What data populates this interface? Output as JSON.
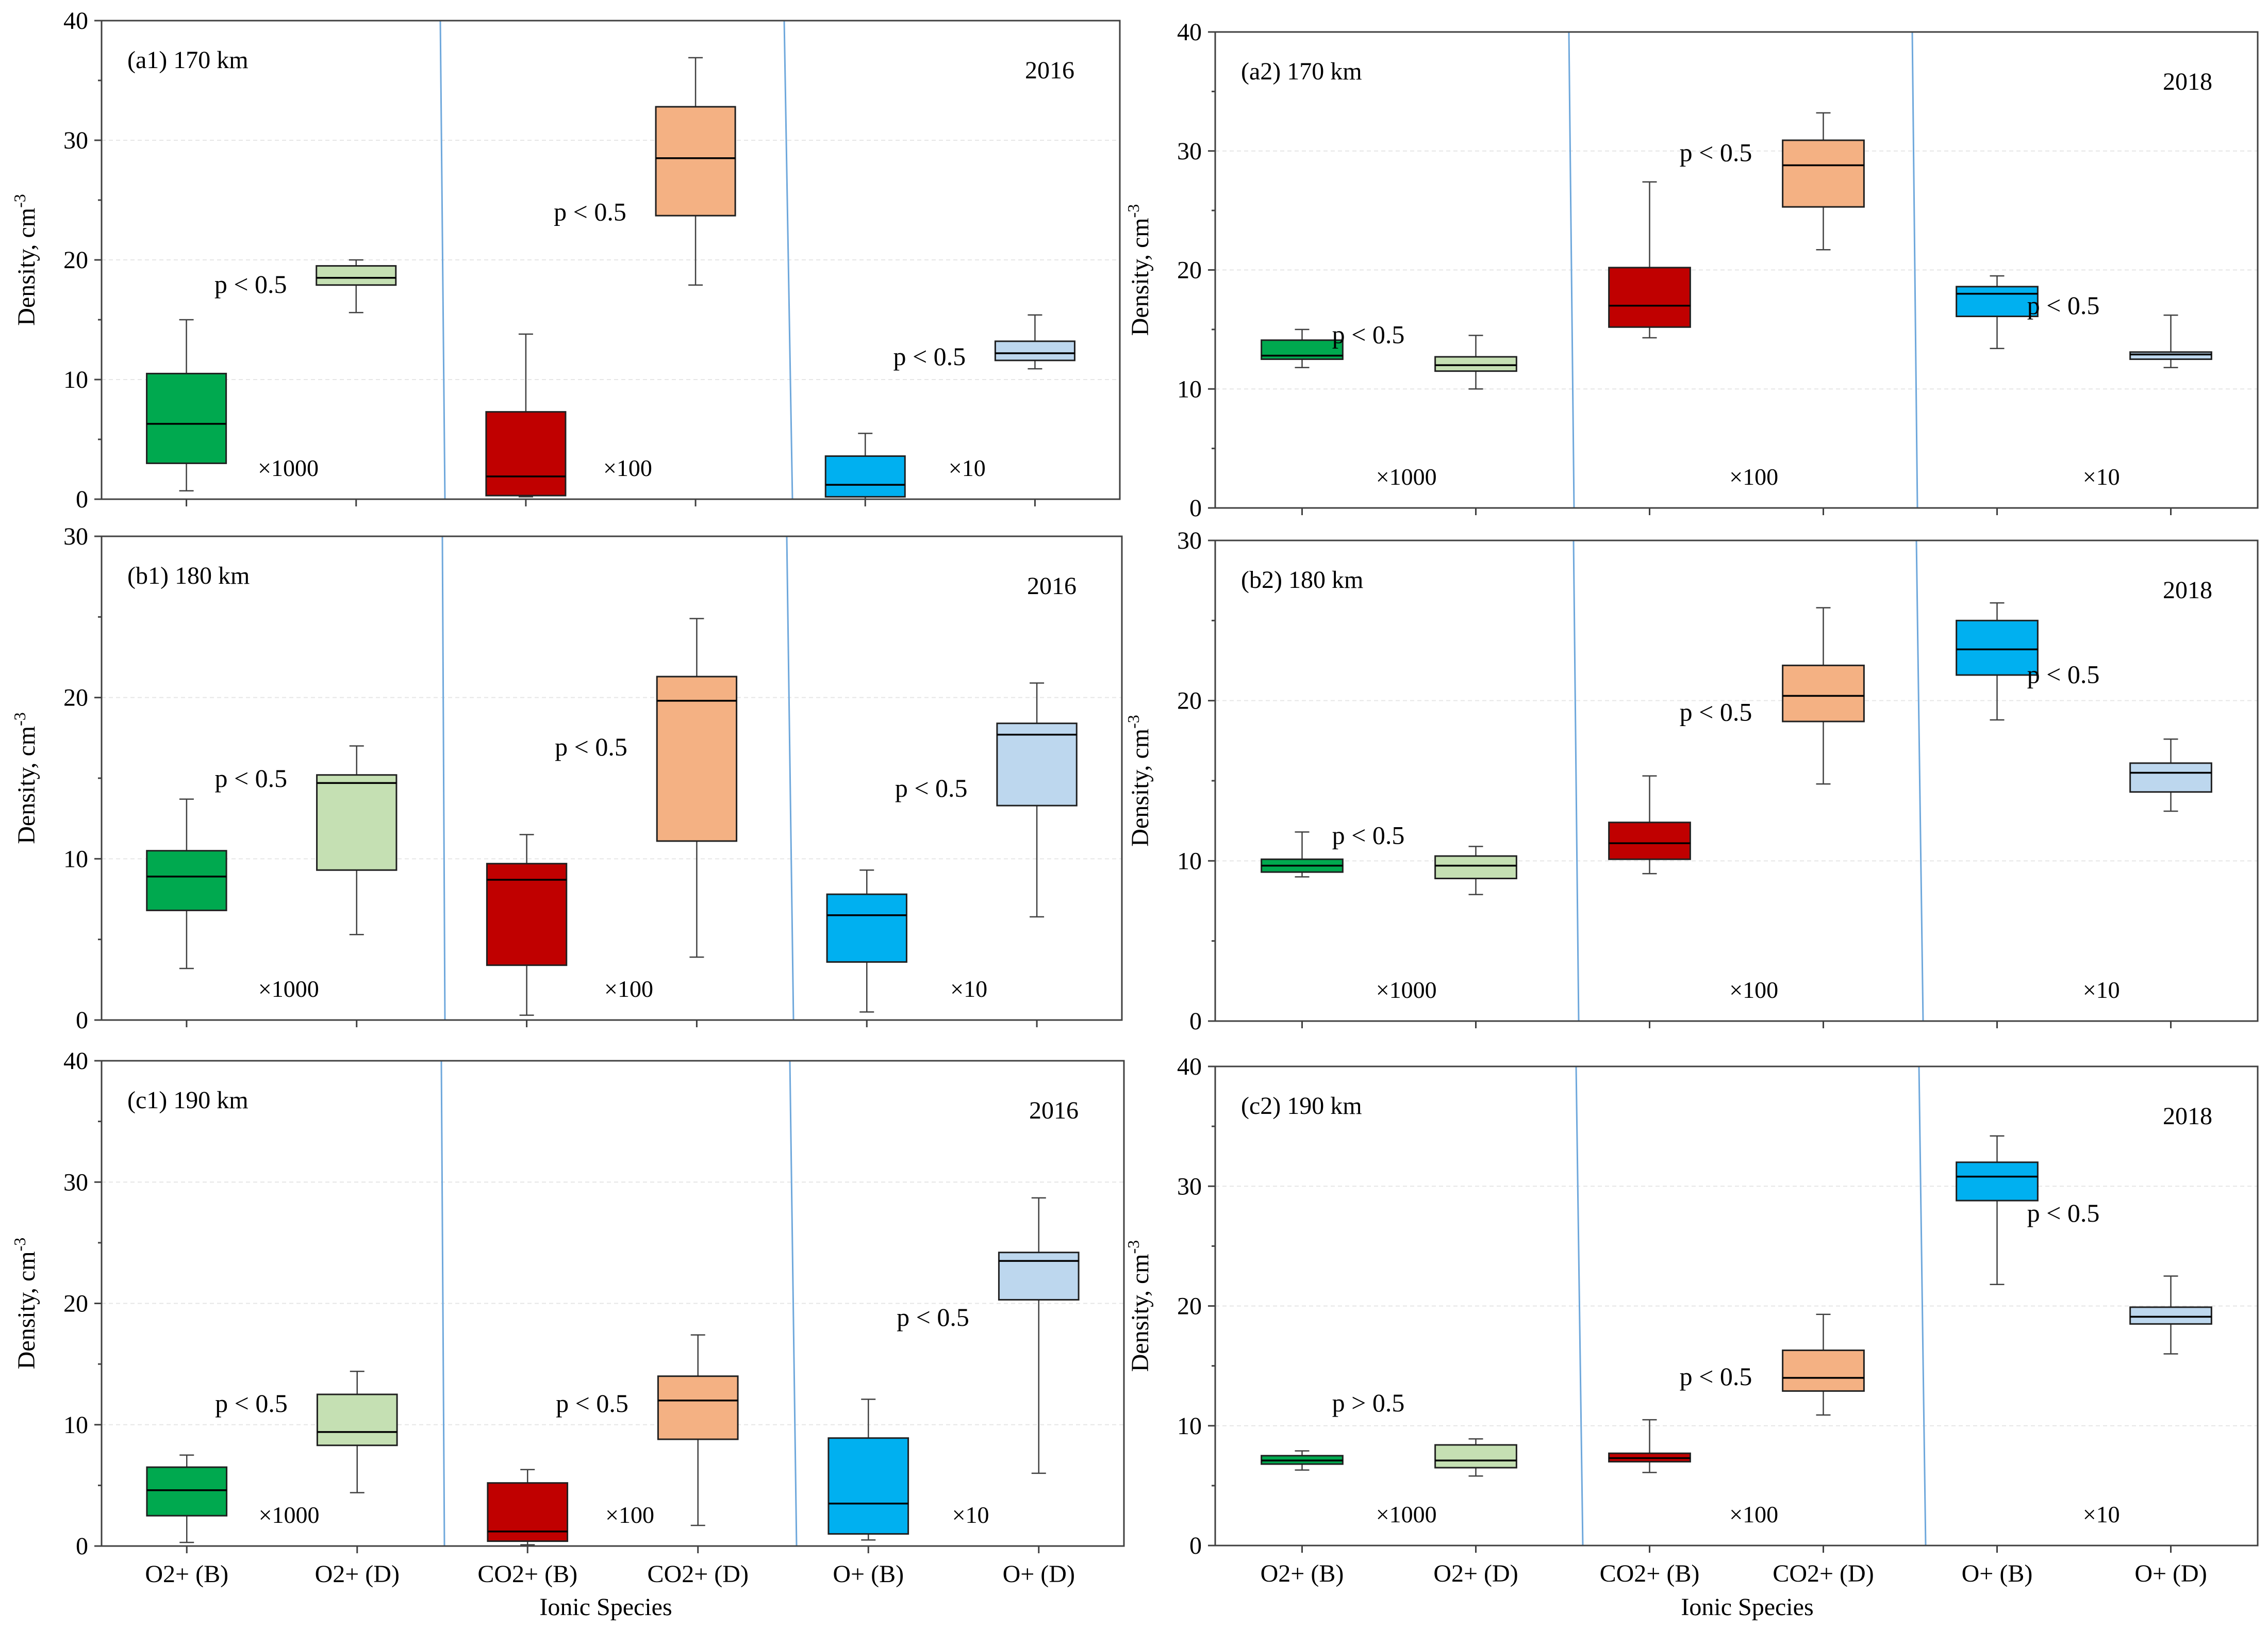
{
  "figure": {
    "x_axis_title": "Ionic Species",
    "y_axis_title": "Density, cm",
    "y_axis_exponent": "-3"
  },
  "colors": {
    "O2+ (B)": "#00a94f",
    "O2+ (D)": "#c5e0b3",
    "CO2+ (B)": "#c00000",
    "CO2+ (D)": "#f4b183",
    "O+ (B)": "#00b0f0",
    "O+ (D)": "#bdd7ee"
  },
  "chart_data": [
    {
      "id": "a1",
      "type": "box",
      "title": "(a1) 170 km",
      "year": "2016",
      "categories": [
        "O2+ (B)",
        "O2+ (D)",
        "CO2+ (B)",
        "CO2+ (D)",
        "O+ (B)",
        "O+ (D)"
      ],
      "ylim": [
        0,
        40
      ],
      "yticks": [
        0,
        10,
        20,
        30,
        40
      ],
      "boxes": [
        {
          "min": 0.7,
          "q1": 3.0,
          "median": 6.3,
          "q3": 10.5,
          "max": 15.0
        },
        {
          "min": 15.6,
          "q1": 17.9,
          "median": 18.5,
          "q3": 19.5,
          "max": 20.0
        },
        {
          "min": 0.2,
          "q1": 0.3,
          "median": 1.9,
          "q3": 7.3,
          "max": 13.8
        },
        {
          "min": 17.9,
          "q1": 23.7,
          "median": 28.5,
          "q3": 32.8,
          "max": 36.9
        },
        {
          "min": 0.0,
          "q1": 0.2,
          "median": 1.2,
          "q3": 3.6,
          "max": 5.5
        },
        {
          "min": 10.9,
          "q1": 11.6,
          "median": 12.2,
          "q3": 13.2,
          "max": 15.4
        }
      ],
      "p_values": [
        "p < 0.5",
        "p < 0.5",
        "p < 0.5"
      ],
      "multipliers": [
        "×1000",
        "×100",
        "×10"
      ]
    },
    {
      "id": "a2",
      "type": "box",
      "title": "(a2) 170 km",
      "year": "2018",
      "categories": [
        "O2+ (B)",
        "O2+ (D)",
        "CO2+ (B)",
        "CO2+ (D)",
        "O+ (B)",
        "O+ (D)"
      ],
      "ylim": [
        0,
        40
      ],
      "yticks": [
        0,
        10,
        20,
        30,
        40
      ],
      "boxes": [
        {
          "min": 11.8,
          "q1": 12.5,
          "median": 12.8,
          "q3": 14.1,
          "max": 15.0
        },
        {
          "min": 10.0,
          "q1": 11.5,
          "median": 12.0,
          "q3": 12.7,
          "max": 14.5
        },
        {
          "min": 14.3,
          "q1": 15.2,
          "median": 17.0,
          "q3": 20.2,
          "max": 27.4
        },
        {
          "min": 21.7,
          "q1": 25.3,
          "median": 28.8,
          "q3": 30.9,
          "max": 33.2
        },
        {
          "min": 13.4,
          "q1": 16.1,
          "median": 18.0,
          "q3": 18.6,
          "max": 19.5
        },
        {
          "min": 11.8,
          "q1": 12.5,
          "median": 12.9,
          "q3": 13.1,
          "max": 16.2
        }
      ],
      "p_values": [
        "p < 0.5",
        "p < 0.5",
        "p < 0.5"
      ],
      "multipliers": [
        "×1000",
        "×100",
        "×10"
      ]
    },
    {
      "id": "b1",
      "type": "box",
      "title": "(b1) 180 km",
      "year": "2016",
      "categories": [
        "O2+ (B)",
        "O2+ (D)",
        "CO2+ (B)",
        "CO2+ (D)",
        "O+ (B)",
        "O+ (D)"
      ],
      "ylim": [
        0,
        30
      ],
      "yticks": [
        0,
        10,
        20,
        30
      ],
      "boxes": [
        {
          "min": 3.2,
          "q1": 6.8,
          "median": 8.9,
          "q3": 10.5,
          "max": 13.7
        },
        {
          "min": 5.3,
          "q1": 9.3,
          "median": 14.7,
          "q3": 15.2,
          "max": 17.0
        },
        {
          "min": 0.3,
          "q1": 3.4,
          "median": 8.7,
          "q3": 9.7,
          "max": 11.5
        },
        {
          "min": 3.9,
          "q1": 11.1,
          "median": 19.8,
          "q3": 21.3,
          "max": 24.9
        },
        {
          "min": 0.5,
          "q1": 3.6,
          "median": 6.5,
          "q3": 7.8,
          "max": 9.3
        },
        {
          "min": 6.4,
          "q1": 13.3,
          "median": 17.7,
          "q3": 18.4,
          "max": 20.9
        }
      ],
      "p_values": [
        "p < 0.5",
        "p < 0.5",
        "p < 0.5"
      ],
      "multipliers": [
        "×1000",
        "×100",
        "×10"
      ]
    },
    {
      "id": "b2",
      "type": "box",
      "title": "(b2) 180 km",
      "year": "2018",
      "categories": [
        "O2+ (B)",
        "O2+ (D)",
        "CO2+ (B)",
        "CO2+ (D)",
        "O+ (B)",
        "O+ (D)"
      ],
      "ylim": [
        0,
        30
      ],
      "yticks": [
        0,
        10,
        20,
        30
      ],
      "boxes": [
        {
          "min": 9.0,
          "q1": 9.3,
          "median": 9.7,
          "q3": 10.1,
          "max": 11.8
        },
        {
          "min": 7.9,
          "q1": 8.9,
          "median": 9.7,
          "q3": 10.3,
          "max": 10.9
        },
        {
          "min": 9.2,
          "q1": 10.1,
          "median": 11.1,
          "q3": 12.4,
          "max": 15.3
        },
        {
          "min": 14.8,
          "q1": 18.7,
          "median": 20.3,
          "q3": 22.2,
          "max": 25.8
        },
        {
          "min": 18.8,
          "q1": 21.6,
          "median": 23.2,
          "q3": 25.0,
          "max": 26.1
        },
        {
          "min": 13.1,
          "q1": 14.3,
          "median": 15.5,
          "q3": 16.1,
          "max": 17.6
        }
      ],
      "p_values": [
        "p < 0.5",
        "p < 0.5",
        "p < 0.5"
      ],
      "multipliers": [
        "×1000",
        "×100",
        "×10"
      ]
    },
    {
      "id": "c1",
      "type": "box",
      "title": "(c1) 190 km",
      "year": "2016",
      "categories": [
        "O2+ (B)",
        "O2+ (D)",
        "CO2+ (B)",
        "CO2+ (D)",
        "O+ (B)",
        "O+ (D)"
      ],
      "ylim": [
        0,
        40
      ],
      "yticks": [
        0,
        10,
        20,
        30,
        40
      ],
      "boxes": [
        {
          "min": 0.3,
          "q1": 2.5,
          "median": 4.6,
          "q3": 6.5,
          "max": 7.5
        },
        {
          "min": 4.4,
          "q1": 8.3,
          "median": 9.4,
          "q3": 12.5,
          "max": 14.4
        },
        {
          "min": 0.1,
          "q1": 0.4,
          "median": 1.2,
          "q3": 5.2,
          "max": 6.3
        },
        {
          "min": 1.7,
          "q1": 8.8,
          "median": 12.0,
          "q3": 14.0,
          "max": 17.4
        },
        {
          "min": 0.5,
          "q1": 1.0,
          "median": 3.5,
          "q3": 8.9,
          "max": 12.1
        },
        {
          "min": 6.0,
          "q1": 20.3,
          "median": 23.5,
          "q3": 24.2,
          "max": 28.7
        }
      ],
      "p_values": [
        "p < 0.5",
        "p < 0.5",
        "p < 0.5"
      ],
      "multipliers": [
        "×1000",
        "×100",
        "×10"
      ]
    },
    {
      "id": "c2",
      "type": "box",
      "title": "(c2) 190 km",
      "year": "2018",
      "categories": [
        "O2+ (B)",
        "O2+ (D)",
        "CO2+ (B)",
        "CO2+ (D)",
        "O+ (B)",
        "O+ (D)"
      ],
      "ylim": [
        0,
        40
      ],
      "yticks": [
        0,
        10,
        20,
        30,
        40
      ],
      "boxes": [
        {
          "min": 6.3,
          "q1": 6.8,
          "median": 7.1,
          "q3": 7.5,
          "max": 7.9
        },
        {
          "min": 5.8,
          "q1": 6.5,
          "median": 7.1,
          "q3": 8.4,
          "max": 8.9
        },
        {
          "min": 6.1,
          "q1": 7.0,
          "median": 7.3,
          "q3": 7.7,
          "max": 10.5
        },
        {
          "min": 10.9,
          "q1": 12.9,
          "median": 14.0,
          "q3": 16.3,
          "max": 19.3
        },
        {
          "min": 21.8,
          "q1": 28.8,
          "median": 30.8,
          "q3": 32.0,
          "max": 34.2
        },
        {
          "min": 16.0,
          "q1": 18.5,
          "median": 19.1,
          "q3": 19.9,
          "max": 22.5
        }
      ],
      "p_values": [
        "p > 0.5",
        "p < 0.5",
        "p < 0.5"
      ],
      "multipliers": [
        "×1000",
        "×100",
        "×10"
      ]
    }
  ]
}
